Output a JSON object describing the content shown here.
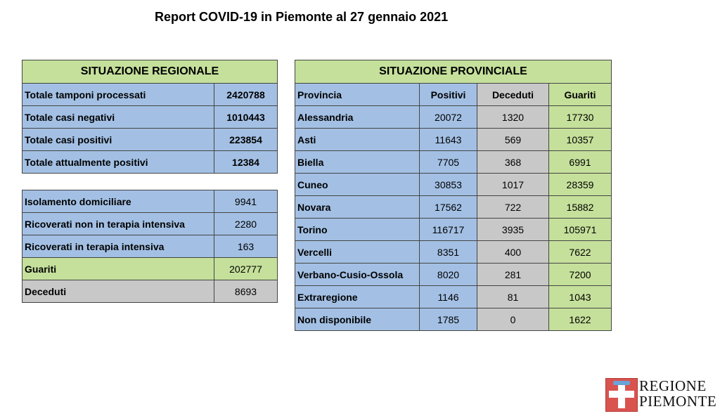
{
  "title": "Report COVID-19 in Piemonte al 27 gennaio 2021",
  "regionale": {
    "header": "SITUAZIONE REGIONALE",
    "rows": [
      {
        "label": "Totale tamponi processati",
        "value": "2420788"
      },
      {
        "label": "Totale casi negativi",
        "value": "1010443"
      },
      {
        "label": "Totale casi positivi",
        "value": "223854"
      },
      {
        "label": "Totale attualmente positivi",
        "value": "12384"
      }
    ]
  },
  "dettaglio": {
    "rows": [
      {
        "label": "Isolamento domiciliare",
        "value": "9941"
      },
      {
        "label": "Ricoverati non in terapia intensiva",
        "value": "2280"
      },
      {
        "label": "Ricoverati in terapia intensiva",
        "value": "163"
      },
      {
        "label": "Guariti",
        "value": "202777"
      },
      {
        "label": "Deceduti",
        "value": "8693"
      }
    ]
  },
  "provinciale": {
    "header": "SITUAZIONE PROVINCIALE",
    "columns": [
      "Provincia",
      "Positivi",
      "Deceduti",
      "Guariti"
    ],
    "rows": [
      [
        "Alessandria",
        "20072",
        "1320",
        "17730"
      ],
      [
        "Asti",
        "11643",
        "569",
        "10357"
      ],
      [
        "Biella",
        "7705",
        "368",
        "6991"
      ],
      [
        "Cuneo",
        "30853",
        "1017",
        "28359"
      ],
      [
        "Novara",
        "17562",
        "722",
        "15882"
      ],
      [
        "Torino",
        "116717",
        "3935",
        "105971"
      ],
      [
        "Vercelli",
        "8351",
        "400",
        "7622"
      ],
      [
        "Verbano-Cusio-Ossola",
        "8020",
        "281",
        "7200"
      ],
      [
        "Extraregione",
        "1146",
        "81",
        "1043"
      ],
      [
        "Non disponibile",
        "1785",
        "0",
        "1622"
      ]
    ]
  },
  "logo": {
    "line1": "REGIONE",
    "line2": "PIEMONTE"
  },
  "colors": {
    "green": "#c5e09b",
    "blue": "#a3c0e4",
    "grey": "#c8c8c8"
  }
}
